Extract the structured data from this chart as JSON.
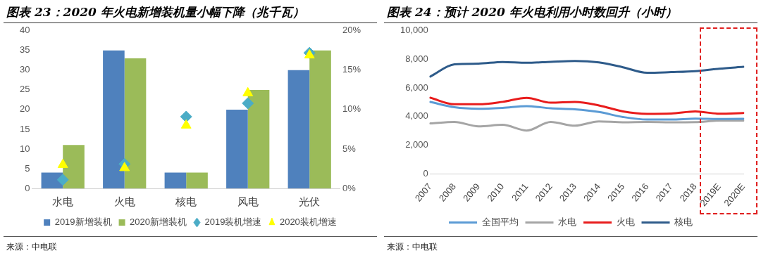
{
  "chart_data": [
    {
      "type": "bar",
      "title": "图表 23：2020 年火电新增装机量小幅下降（兆千瓦）",
      "categories": [
        "水电",
        "火电",
        "核电",
        "风电",
        "光伏"
      ],
      "series": [
        {
          "name": "2019新增装机",
          "type": "bar",
          "color": "#4f81bd",
          "values": [
            4,
            35,
            4,
            20,
            30
          ]
        },
        {
          "name": "2020新增装机",
          "type": "bar",
          "color": "#9bbb59",
          "values": [
            11,
            33,
            4,
            25,
            35
          ]
        },
        {
          "name": "2019装机增速",
          "type": "scatter",
          "marker": "diamond",
          "axis": "y2",
          "color": "#4bacc6",
          "values": [
            1.1,
            3.1,
            9.1,
            10.8,
            17.2
          ]
        },
        {
          "name": "2020装机增速",
          "type": "scatter",
          "marker": "triangle",
          "axis": "y2",
          "color": "#ffff00",
          "values": [
            3.0,
            2.6,
            8.0,
            12.1,
            16.9
          ]
        }
      ],
      "ylim": [
        0,
        40
      ],
      "yticks": [
        0,
        5,
        10,
        15,
        20,
        25,
        30,
        35,
        40
      ],
      "y2lim": [
        0,
        20
      ],
      "y2ticks": [
        {
          "value": 0,
          "label": "0%"
        },
        {
          "value": 5,
          "label": "5%"
        },
        {
          "value": 10,
          "label": "10%"
        },
        {
          "value": 15,
          "label": "15%"
        },
        {
          "value": 20,
          "label": "20%"
        }
      ],
      "legend": "bottom",
      "annotations": [
        "来源：中电联"
      ]
    },
    {
      "type": "line",
      "title": "图表 24：预计 2020 年火电利用小时数回升（小时）",
      "categories": [
        "2007",
        "2008",
        "2009",
        "2010",
        "2011",
        "2012",
        "2013",
        "2014",
        "2015",
        "2016",
        "2017",
        "2018",
        "2019E",
        "2020E"
      ],
      "series": [
        {
          "name": "全国平均",
          "color": "#5b9bd5",
          "values": [
            5020,
            4650,
            4550,
            4610,
            4730,
            4580,
            4510,
            4320,
            3970,
            3790,
            3790,
            3860,
            3830,
            3840
          ]
        },
        {
          "name": "水电",
          "color": "#a5a5a5",
          "values": [
            3520,
            3620,
            3320,
            3420,
            3020,
            3620,
            3360,
            3660,
            3600,
            3620,
            3600,
            3610,
            3720,
            3720
          ]
        },
        {
          "name": "火电",
          "color": "#e81c1c",
          "values": [
            5320,
            4860,
            4860,
            5030,
            5310,
            4970,
            5020,
            4780,
            4360,
            4190,
            4210,
            4360,
            4200,
            4250
          ]
        },
        {
          "name": "核电",
          "color": "#2e5b8a",
          "values": [
            6800,
            7650,
            7700,
            7820,
            7760,
            7830,
            7890,
            7790,
            7450,
            7060,
            7110,
            7180,
            7350,
            7480
          ]
        }
      ],
      "marker": "none",
      "line_style": "solid",
      "ylim": [
        0,
        10000
      ],
      "yticks": [
        {
          "value": 0,
          "label": "0"
        },
        {
          "value": 2000,
          "label": "2,000"
        },
        {
          "value": 4000,
          "label": "4,000"
        },
        {
          "value": 6000,
          "label": "6,000"
        },
        {
          "value": 8000,
          "label": "8,000"
        },
        {
          "value": 10000,
          "label": "10,000"
        }
      ],
      "legend": "bottom",
      "annotations": [
        "来源：中电联"
      ]
    }
  ]
}
